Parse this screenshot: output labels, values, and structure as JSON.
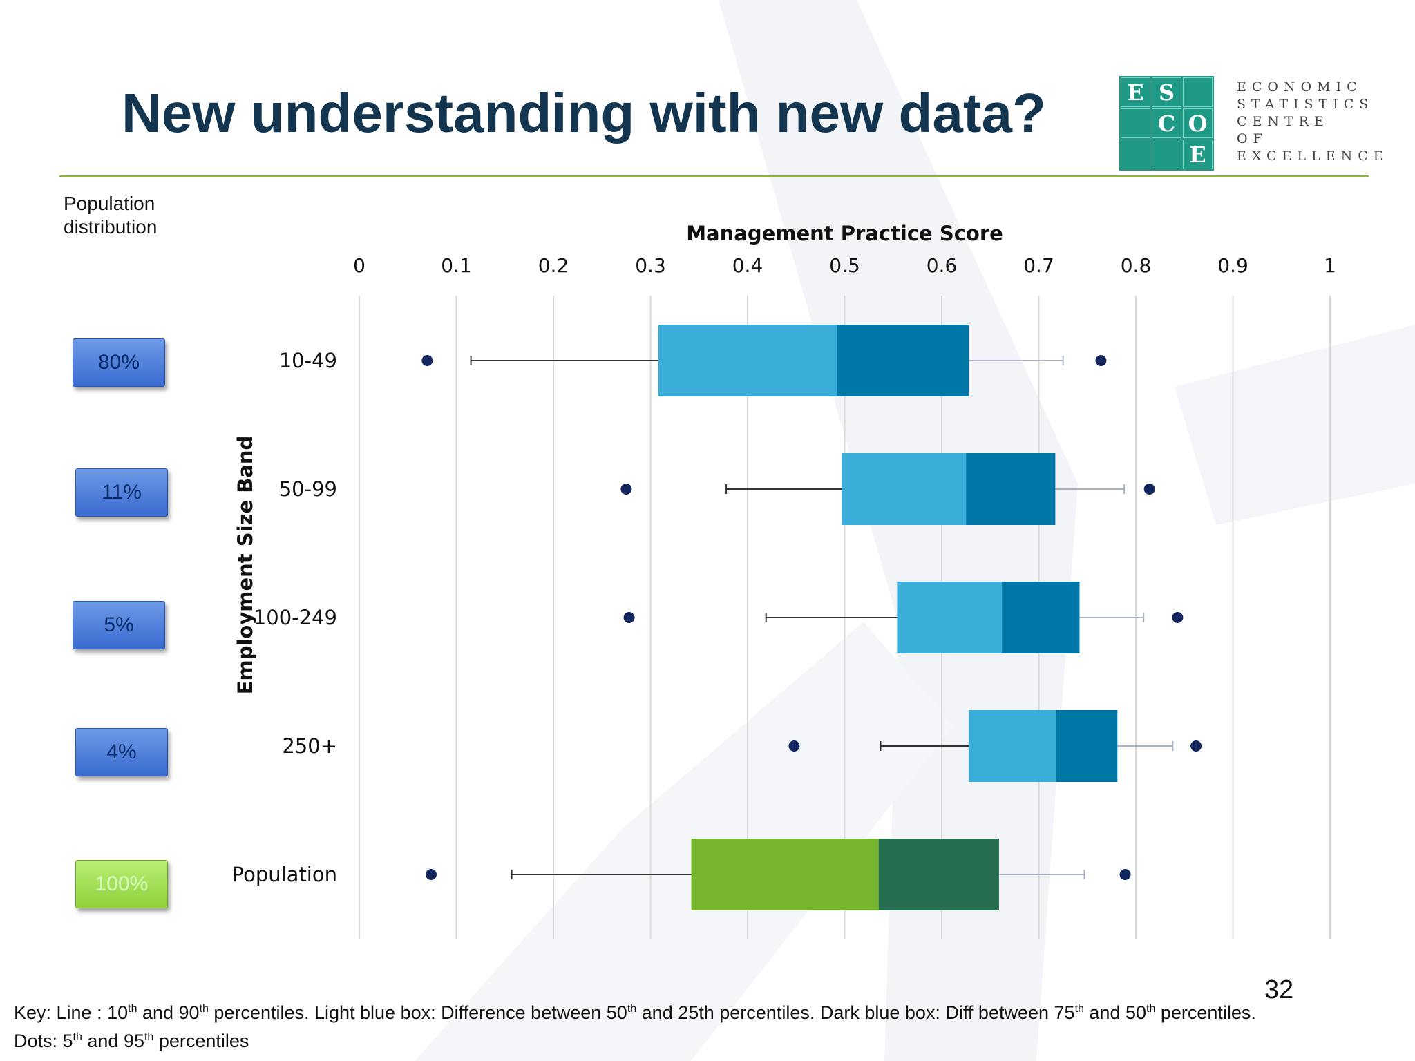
{
  "slide": {
    "title": "New understanding with new data?",
    "page_number": "32"
  },
  "logo": {
    "grid_letters": [
      "E",
      "S",
      "",
      "",
      "C",
      "O",
      "",
      "",
      "E"
    ],
    "lines": [
      "ECONOMIC",
      "STATISTICS",
      "CENTRE",
      "OF",
      "EXCELLENCE"
    ]
  },
  "population_label": "Population distribution",
  "badges": [
    "80%",
    "11%",
    "5%",
    "4%",
    "100%"
  ],
  "key": {
    "line1_parts": [
      "Key: Line : 10",
      "th",
      " and 90",
      "th",
      " percentiles. Light blue box: Difference between 50",
      "th",
      " and 25th percentiles. Dark blue box: Diff between 75",
      "th",
      " and 50",
      "th",
      " percentiles."
    ],
    "line2_parts": [
      "Dots: 5",
      "th",
      " and 95",
      "th",
      " percentiles"
    ]
  },
  "colors": {
    "title": "#13354f",
    "light_blue": "#3aaed9",
    "dark_blue": "#0077a6",
    "light_green": "#77b52f",
    "dark_green": "#266c4f",
    "dot": "#13275e"
  },
  "chart_data": {
    "type": "box",
    "title": "Management Practice Score",
    "xlabel": "Management Practice Score",
    "ylabel": "Employment Size Band",
    "xlim": [
      0,
      1
    ],
    "xticks": [
      0,
      0.1,
      0.2,
      0.3,
      0.4,
      0.5,
      0.6,
      0.7,
      0.8,
      0.9,
      1
    ],
    "xtick_labels": [
      "0",
      "0.1",
      "0.2",
      "0.3",
      "0.4",
      "0.5",
      "0.6",
      "0.7",
      "0.8",
      "0.9",
      "1"
    ],
    "grid": true,
    "categories": [
      "10-49",
      "50-99",
      "100-249",
      "250+",
      "Population"
    ],
    "series": [
      {
        "name": "10-49",
        "p5": 0.07,
        "p10": 0.115,
        "p25": 0.308,
        "p50": 0.492,
        "p75": 0.628,
        "p90": 0.725,
        "p95": 0.764
      },
      {
        "name": "50-99",
        "p5": 0.275,
        "p10": 0.378,
        "p25": 0.497,
        "p50": 0.625,
        "p75": 0.717,
        "p90": 0.788,
        "p95": 0.814
      },
      {
        "name": "100-249",
        "p5": 0.278,
        "p10": 0.419,
        "p25": 0.554,
        "p50": 0.662,
        "p75": 0.742,
        "p90": 0.808,
        "p95": 0.843
      },
      {
        "name": "250+",
        "p5": 0.448,
        "p10": 0.537,
        "p25": 0.628,
        "p50": 0.718,
        "p75": 0.781,
        "p90": 0.838,
        "p95": 0.862
      },
      {
        "name": "Population",
        "p5": 0.074,
        "p10": 0.157,
        "p25": 0.342,
        "p50": 0.535,
        "p75": 0.659,
        "p90": 0.747,
        "p95": 0.789
      }
    ]
  }
}
